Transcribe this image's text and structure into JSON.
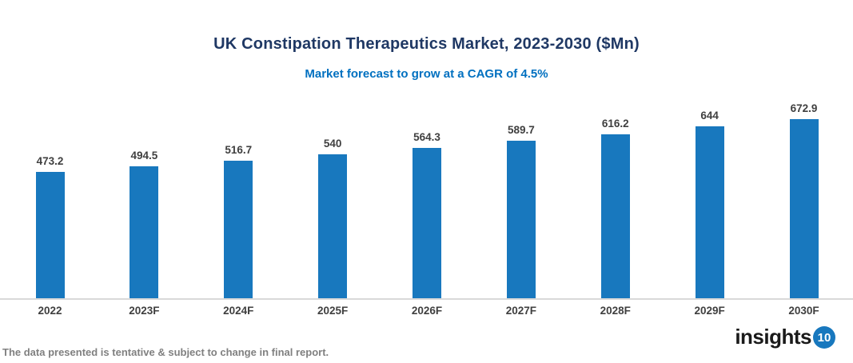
{
  "header": {
    "title": "UK Constipation Therapeutics Market, 2023-2030 ($Mn)",
    "subtitle": "Market forecast to grow at a CAGR of 4.5%"
  },
  "chart_data": {
    "type": "bar",
    "title": "UK Constipation Therapeutics Market, 2023-2030 ($Mn)",
    "subtitle": "Market forecast to grow at a CAGR of 4.5%",
    "categories": [
      "2022",
      "2023F",
      "2024F",
      "2025F",
      "2026F",
      "2027F",
      "2028F",
      "2029F",
      "2030F"
    ],
    "values": [
      473.2,
      494.5,
      516.7,
      540,
      564.3,
      589.7,
      616.2,
      644,
      672.9
    ],
    "value_labels": [
      "473.2",
      "494.5",
      "516.7",
      "540",
      "564.3",
      "589.7",
      "616.2",
      "644",
      "672.9"
    ],
    "xlabel": "",
    "ylabel": "",
    "ylim": [
      0,
      735
    ],
    "grid": false,
    "legend_position": "none",
    "bar_color": "#1878BE"
  },
  "footer": {
    "note": "The data presented is tentative & subject to change in final report."
  },
  "logo": {
    "text": "insights",
    "badge": "10"
  },
  "colors": {
    "background": "#FFFFFF",
    "title": "#1F3864",
    "subtitle": "#0070C0",
    "bar": "#1878BE",
    "value_label": "#3F3F3F",
    "axis_label": "#3F3F3F",
    "axis_line": "#D9D9D9",
    "footer": "#808080",
    "badge": "#1878BE"
  }
}
